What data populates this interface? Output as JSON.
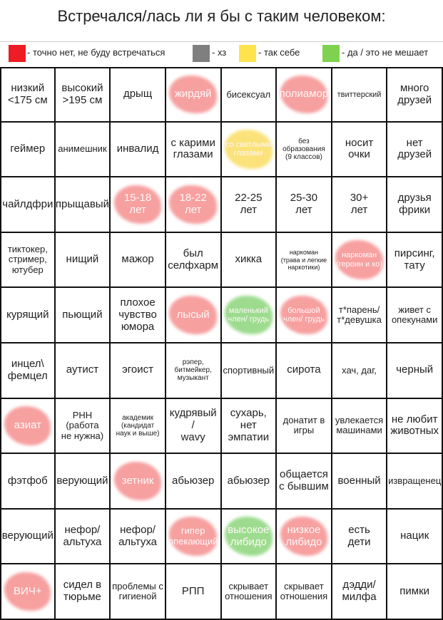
{
  "title": "Встречался/лась ли я бы с таким человеком:",
  "legend": [
    {
      "color": "#ee1c24",
      "label": "- точно нет, не буду встречаться"
    },
    {
      "color": "#7f7f7f",
      "label": "- хз"
    },
    {
      "color": "#ffe34d",
      "label": "- так себе"
    },
    {
      "color": "#7ed24f",
      "label": "- да / это не мешает"
    }
  ],
  "grid": {
    "rows": [
      [
        {
          "text": "низкий\n<175 см"
        },
        {
          "text": "высокий\n>195 см"
        },
        {
          "text": "дрыщ"
        },
        {
          "text": "жирдяй",
          "highlight": "#f7a0a0"
        },
        {
          "text": "бисексуал"
        },
        {
          "text": "полиамор",
          "highlight": "#f7a0a0"
        },
        {
          "text": "твиттерский"
        },
        {
          "text": "много\nдрузей"
        }
      ],
      [
        {
          "text": "геймер"
        },
        {
          "text": "анимешник"
        },
        {
          "text": "инвалид"
        },
        {
          "text": "с карими\nглазами"
        },
        {
          "text": "со светлыми\nглазами",
          "highlight": "#fbe27a"
        },
        {
          "text": "без\nобразования\n(9 классов)"
        },
        {
          "text": "носит\nочки"
        },
        {
          "text": "нет\nдрузей"
        }
      ],
      [
        {
          "text": "чайлдфри"
        },
        {
          "text": "прыщавый"
        },
        {
          "text": "15-18\nлет",
          "highlight": "#f7a0a0"
        },
        {
          "text": "18-22\nлет",
          "highlight": "#f7a0a0"
        },
        {
          "text": "22-25\nлет"
        },
        {
          "text": "25-30\nлет"
        },
        {
          "text": "30+\nлет"
        },
        {
          "text": "друзья\nфрики"
        }
      ],
      [
        {
          "text": "тиктокер,\nстример,\nютубер"
        },
        {
          "text": "нищий"
        },
        {
          "text": "мажор"
        },
        {
          "text": "был\nселфхарм"
        },
        {
          "text": "хикка"
        },
        {
          "text": "наркоман\n(трава и легкие\nнаркотики)"
        },
        {
          "text": "наркоман\n(героин и ко)",
          "highlight": "#f7a0a0"
        },
        {
          "text": "пирсинг,\nтату"
        }
      ],
      [
        {
          "text": "курящий"
        },
        {
          "text": "пьющий"
        },
        {
          "text": "плохое\nчувство\nюмора"
        },
        {
          "text": "лысый",
          "highlight": "#f7a0a0"
        },
        {
          "text": "маленький\nчлен/ грудь",
          "highlight": "#9ddc8f"
        },
        {
          "text": "большой\nчлен/ грудь",
          "highlight": "#f7a0a0"
        },
        {
          "text": "т*парень/\nт*девушка"
        },
        {
          "text": "живет с\nопекунами"
        }
      ],
      [
        {
          "text": "инцел\\\nфемцел"
        },
        {
          "text": "аутист"
        },
        {
          "text": "эгоист"
        },
        {
          "text": "рэпер,\nбитмейкер,\nмузыкант"
        },
        {
          "text": "спортивный"
        },
        {
          "text": "сирота"
        },
        {
          "text": "хач, даг,"
        },
        {
          "text": "черный"
        }
      ],
      [
        {
          "text": "азиат",
          "highlight": "#f7a0a0"
        },
        {
          "text": "РНН\n(работа\nне нужна)"
        },
        {
          "text": "академик\n(кандидат\nнаук и выше)"
        },
        {
          "text": "кудрявый\n/\nwavy"
        },
        {
          "text": "сухарь,\nнет\nэмпатии"
        },
        {
          "text": "донатит в\nигры"
        },
        {
          "text": "увлекается\nмашинами"
        },
        {
          "text": "не любит\nживотных"
        }
      ],
      [
        {
          "text": "фэтфоб"
        },
        {
          "text": "верующий"
        },
        {
          "text": "зетник",
          "highlight": "#f7a0a0"
        },
        {
          "text": "абьюзер"
        },
        {
          "text": "абьюзер"
        },
        {
          "text": "общается\nс бывшим"
        },
        {
          "text": "военный"
        },
        {
          "text": "извращенец"
        }
      ],
      [
        {
          "text": "верующий"
        },
        {
          "text": "нефор/\nальтуха"
        },
        {
          "text": "нефор/\nальтуха"
        },
        {
          "text": "гипер\nопекающий",
          "highlight": "#f7a0a0"
        },
        {
          "text": "высокое\nлибидо",
          "highlight": "#9ddc8f"
        },
        {
          "text": "низкое\nлибидо",
          "highlight": "#f7a0a0"
        },
        {
          "text": "есть\nдети"
        },
        {
          "text": "нацик"
        }
      ],
      [
        {
          "text": "ВИЧ+",
          "highlight": "#f7a0a0"
        },
        {
          "text": "сидел в\nтюрьме"
        },
        {
          "text": "проблемы с\nгигиеной"
        },
        {
          "text": "РПП"
        },
        {
          "text": "скрывает\nотношения"
        },
        {
          "text": "скрывает\nотношения"
        },
        {
          "text": "дэдди/\nмилфа"
        },
        {
          "text": "пимки"
        }
      ]
    ]
  }
}
